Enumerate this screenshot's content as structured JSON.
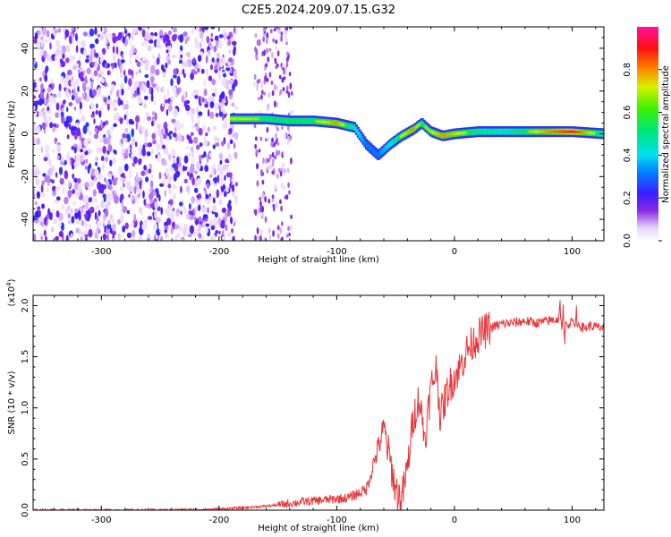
{
  "figure": {
    "title": "C2E5.2024.209.07.15.G32"
  },
  "chart_data": [
    {
      "type": "heatmap",
      "xlabel": "Height of straight line (km)",
      "ylabel": "Frequency (Hz)",
      "xlim": [
        -358,
        127
      ],
      "ylim": [
        -50,
        50
      ],
      "xticks": [
        -300,
        -200,
        -100,
        0,
        100
      ],
      "yticks": [
        -40,
        -20,
        0,
        20,
        40
      ],
      "colorbar": {
        "label": "Normalized spectral amplitude",
        "ticks": [
          "0.0",
          "0.2",
          "0.4",
          "0.6",
          "0.8"
        ],
        "range": [
          0,
          1
        ],
        "colormap": "rainbow (purple-blue-cyan-green-yellow-red-magenta)"
      },
      "signal_track": {
        "x": [
          -190,
          -175,
          -160,
          -140,
          -120,
          -100,
          -85,
          -75,
          -65,
          -55,
          -45,
          -35,
          -28,
          -20,
          -10,
          0,
          20,
          40,
          60,
          80,
          100,
          127
        ],
        "frequency": [
          7,
          7,
          7,
          6,
          6,
          5,
          3,
          -5,
          -10,
          -5,
          -1,
          2,
          5,
          1,
          -1,
          0,
          1,
          1,
          1,
          1,
          1,
          0
        ],
        "amplitude": [
          0.65,
          0.65,
          0.6,
          0.6,
          0.6,
          0.75,
          0.5,
          0.3,
          0.3,
          0.45,
          0.65,
          0.75,
          0.6,
          0.65,
          0.75,
          0.7,
          0.55,
          0.5,
          0.6,
          0.75,
          0.85,
          0.55
        ]
      },
      "noise_region": {
        "x_range": [
          -358,
          -190
        ],
        "frequency_range": [
          -50,
          50
        ],
        "amplitude": "low (0.0-0.2)"
      }
    },
    {
      "type": "line",
      "xlabel": "Height of straight line (km)",
      "ylabel": "SNR (10 * v/v)",
      "scale_label": "(x10",
      "scale_exponent": "4",
      "scale_label_close": ")",
      "xlim": [
        -358,
        127
      ],
      "ylim": [
        0,
        2.1
      ],
      "xticks": [
        -300,
        -200,
        -100,
        0,
        100
      ],
      "yticks": [
        "0.0",
        "0.5",
        "1.0",
        "1.5",
        "2.0"
      ],
      "series": [
        {
          "color": "#e8373a",
          "x": [
            -358,
            -300,
            -250,
            -200,
            -170,
            -150,
            -130,
            -110,
            -90,
            -75,
            -60,
            -50,
            -45,
            -40,
            -35,
            -30,
            -25,
            -20,
            -15,
            -12,
            -10,
            -5,
            0,
            5,
            10,
            20,
            30,
            40,
            50,
            60,
            70,
            80,
            90,
            95,
            100,
            105,
            110,
            115,
            120,
            127
          ],
          "y": [
            0.0,
            0.0,
            0.0,
            0.01,
            0.03,
            0.05,
            0.08,
            0.1,
            0.12,
            0.2,
            0.8,
            0.2,
            0.1,
            0.4,
            0.9,
            1.1,
            0.7,
            1.2,
            1.4,
            0.9,
            1.0,
            1.2,
            1.3,
            1.4,
            1.55,
            1.7,
            1.78,
            1.82,
            1.83,
            1.85,
            1.83,
            1.85,
            1.88,
            1.8,
            1.85,
            1.82,
            1.78,
            1.8,
            1.79,
            1.78
          ]
        }
      ]
    }
  ]
}
